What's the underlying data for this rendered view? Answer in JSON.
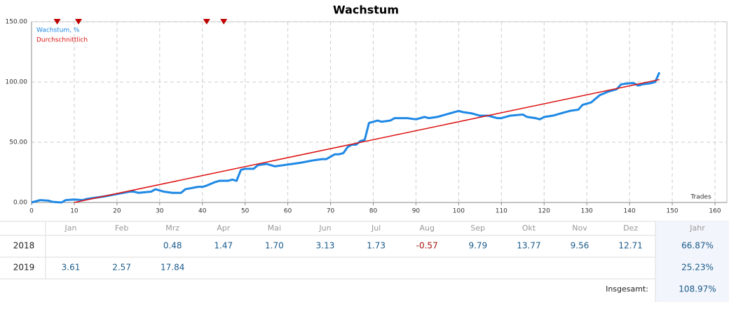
{
  "chart_data": {
    "type": "line",
    "title": "Wachstum",
    "xlabel": "Trades",
    "xlim": [
      0,
      160
    ],
    "xticks": [
      0,
      10,
      20,
      30,
      40,
      50,
      60,
      70,
      80,
      90,
      100,
      110,
      120,
      130,
      140,
      150,
      160
    ],
    "ylim": [
      0,
      150
    ],
    "yticks": [
      {
        "value": 0,
        "label": "0.00"
      },
      {
        "value": 50,
        "label": "50.00"
      },
      {
        "value": 100,
        "label": "100.00"
      },
      {
        "value": 150,
        "label": "150.00"
      }
    ],
    "grid": true,
    "legend": "top-left",
    "markers": {
      "color": "#c00000",
      "x": [
        6,
        11,
        41,
        45
      ]
    },
    "series": [
      {
        "name": "Wachstum, %",
        "color": "#1e88e5",
        "x": [
          0,
          2,
          4,
          5,
          7,
          8,
          10,
          12,
          13,
          15,
          17,
          20,
          23,
          24,
          25,
          28,
          29,
          30,
          31,
          33,
          35,
          36,
          39,
          40,
          41,
          43,
          44,
          46,
          47,
          48,
          49,
          50,
          52,
          53,
          55,
          56,
          57,
          59,
          61,
          63,
          66,
          68,
          69,
          70,
          71,
          72,
          73,
          74,
          75,
          76,
          77,
          78,
          79,
          80,
          81,
          82,
          84,
          85,
          88,
          90,
          92,
          93,
          95,
          97,
          98,
          100,
          101,
          103,
          105,
          107,
          108,
          109,
          110,
          112,
          115,
          116,
          118,
          119,
          120,
          122,
          124,
          126,
          128,
          129,
          131,
          133,
          135,
          137,
          138,
          140,
          141,
          142,
          143,
          145,
          146,
          147
        ],
        "values": [
          0,
          2,
          1.5,
          0.5,
          0,
          2,
          2.5,
          2,
          3,
          4,
          5,
          7,
          9,
          9,
          8,
          9,
          11,
          10,
          9,
          8,
          8,
          11,
          13,
          13,
          14,
          17,
          18,
          18,
          19,
          18,
          27,
          28,
          28,
          31,
          32,
          31,
          30,
          31,
          32,
          33,
          35,
          36,
          36,
          38,
          40,
          40,
          41,
          46,
          48,
          48,
          51,
          52,
          66,
          67,
          68,
          67,
          68,
          70,
          70,
          69,
          71,
          70,
          71,
          73,
          74,
          76,
          75,
          74,
          72,
          72,
          71,
          70,
          70,
          72,
          73,
          71,
          70,
          69,
          71,
          72,
          74,
          76,
          77,
          81,
          83,
          89,
          92,
          94,
          98,
          99,
          99,
          97,
          98,
          99,
          100,
          108
        ]
      },
      {
        "name": "Durchschnittlich",
        "color": "#dd1111",
        "x": [
          10,
          147
        ],
        "values": [
          0,
          102
        ]
      }
    ]
  },
  "table": {
    "header": [
      "Jan",
      "Feb",
      "Mrz",
      "Apr",
      "Mai",
      "Jun",
      "Jul",
      "Aug",
      "Sep",
      "Okt",
      "Nov",
      "Dez",
      "Jahr"
    ],
    "rows": [
      {
        "year": "2018",
        "cells": [
          null,
          null,
          "0.48",
          "1.47",
          "1.70",
          "3.13",
          "1.73",
          "-0.57",
          "9.79",
          "13.77",
          "9.56",
          "12.71"
        ],
        "total": "66.87%"
      },
      {
        "year": "2019",
        "cells": [
          "3.61",
          "2.57",
          "17.84",
          null,
          null,
          null,
          null,
          null,
          null,
          null,
          null,
          null
        ],
        "total": "25.23%"
      }
    ],
    "footer": {
      "label": "Insgesamt:",
      "value": "108.97%"
    }
  }
}
